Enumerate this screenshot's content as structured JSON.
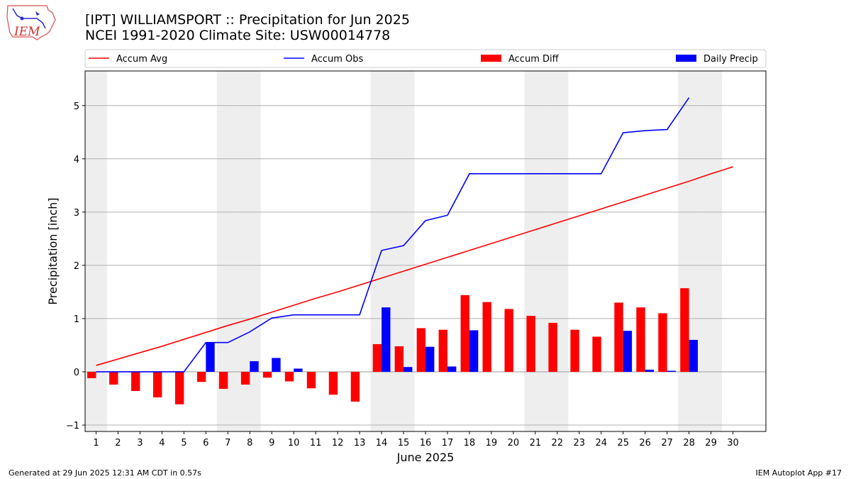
{
  "logo_text": "IEM",
  "title": "[IPT] WILLIAMSPORT :: Precipitation for Jun 2025",
  "subtitle": "NCEI 1991-2020 Climate Site: USW00014778",
  "footer_left": "Generated at 29 Jun 2025 12:31 AM CDT in 0.57s",
  "footer_right": "IEM Autoplot App #17",
  "colors": {
    "accum_avg": "#ff0000",
    "accum_obs": "#0000ff",
    "accum_diff": "#ff0000",
    "daily_precip": "#0000ff",
    "weekend_shade": "#eeeeee",
    "grid": "#b0b0b0"
  },
  "chart_data": {
    "type": "bar",
    "title": "[IPT] WILLIAMSPORT :: Precipitation for Jun 2025",
    "xlabel": "June 2025",
    "ylabel": "Precipitation [inch]",
    "x": [
      1,
      2,
      3,
      4,
      5,
      6,
      7,
      8,
      9,
      10,
      11,
      12,
      13,
      14,
      15,
      16,
      17,
      18,
      19,
      20,
      21,
      22,
      23,
      24,
      25,
      26,
      27,
      28,
      29,
      30
    ],
    "xticks": [
      "1",
      "2",
      "3",
      "4",
      "5",
      "6",
      "7",
      "8",
      "9",
      "10",
      "11",
      "12",
      "13",
      "14",
      "15",
      "16",
      "17",
      "18",
      "19",
      "20",
      "21",
      "22",
      "23",
      "24",
      "25",
      "26",
      "27",
      "28",
      "29",
      "30"
    ],
    "yticks": [
      "−1",
      "0",
      "1",
      "2",
      "3",
      "4",
      "5"
    ],
    "ylim": [
      -1.12,
      5.65
    ],
    "xlim": [
      0.5,
      31.5
    ],
    "grid": "horizontal",
    "legend_position": "top, outside plot",
    "weekend_days": [
      1,
      7,
      8,
      14,
      15,
      21,
      22,
      28,
      29
    ],
    "series": [
      {
        "name": "Accum Avg",
        "kind": "line",
        "values": [
          0.12,
          0.24,
          0.36,
          0.48,
          0.61,
          0.74,
          0.87,
          0.99,
          1.12,
          1.25,
          1.38,
          1.5,
          1.63,
          1.76,
          1.89,
          2.02,
          2.15,
          2.28,
          2.41,
          2.54,
          2.67,
          2.8,
          2.93,
          3.06,
          3.19,
          3.32,
          3.45,
          3.58,
          3.72,
          3.85
        ]
      },
      {
        "name": "Accum Obs",
        "kind": "line",
        "values": [
          0.0,
          0.0,
          0.0,
          0.0,
          0.0,
          0.55,
          0.55,
          0.75,
          1.01,
          1.07,
          1.07,
          1.07,
          1.07,
          2.28,
          2.37,
          2.84,
          2.94,
          3.72,
          3.72,
          3.72,
          3.72,
          3.72,
          3.72,
          3.72,
          4.49,
          4.53,
          4.55,
          5.15,
          null,
          null
        ]
      },
      {
        "name": "Accum Diff",
        "kind": "bar",
        "values": [
          -0.12,
          -0.24,
          -0.36,
          -0.48,
          -0.61,
          -0.19,
          -0.32,
          -0.24,
          -0.11,
          -0.18,
          -0.31,
          -0.43,
          -0.56,
          0.52,
          0.48,
          0.82,
          0.79,
          1.44,
          1.31,
          1.18,
          1.05,
          0.92,
          0.79,
          0.66,
          1.3,
          1.21,
          1.1,
          1.57,
          null,
          null
        ]
      },
      {
        "name": "Daily Precip",
        "kind": "bar",
        "values": [
          0,
          0,
          0,
          0,
          0,
          0.55,
          0,
          0.2,
          0.26,
          0.06,
          0,
          0,
          0,
          1.21,
          0.09,
          0.47,
          0.1,
          0.78,
          0,
          0,
          0,
          0,
          0,
          0,
          0.77,
          0.04,
          0.02,
          0.6,
          null,
          null
        ]
      }
    ]
  }
}
